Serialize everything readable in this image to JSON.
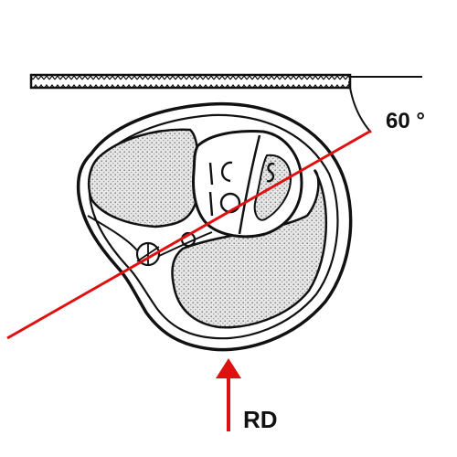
{
  "angle_label": "60 °",
  "direction_label": "RD",
  "colors": {
    "outline": "#111111",
    "beam_line": "#e01010",
    "arrow": "#e01010",
    "stipple_fill": "#d2d2d2",
    "background": "#ffffff"
  },
  "icons": {
    "beam": "straight-red-line",
    "direction": "red-up-arrow"
  }
}
